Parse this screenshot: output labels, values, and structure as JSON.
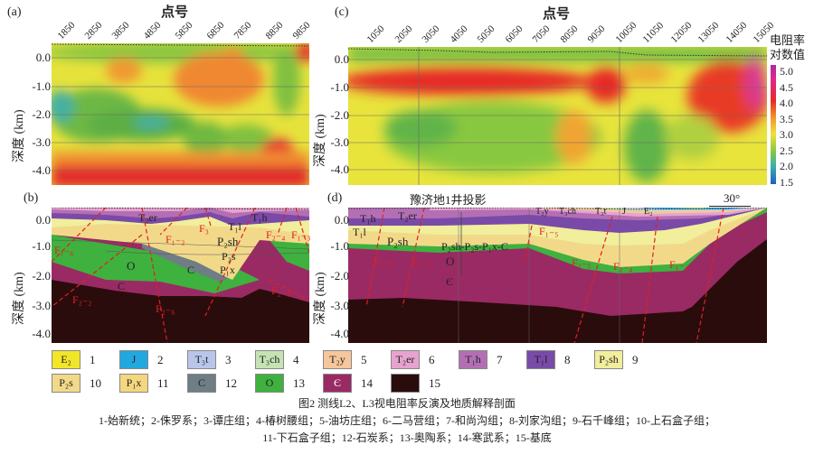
{
  "panel_a": {
    "label": "(a)",
    "x_title": "点号",
    "y_title": "深度 (km)",
    "x_ticks": [
      "1850",
      "2850",
      "3850",
      "4850",
      "5850",
      "6850",
      "7850",
      "8850",
      "9850"
    ],
    "y_ticks": [
      "0.0",
      "-1.0",
      "-2.0",
      "-3.0",
      "-4.0"
    ]
  },
  "panel_c": {
    "label": "(c)",
    "x_title": "点号",
    "y_title": "深度 (km)",
    "x_ticks": [
      "1050",
      "2050",
      "3050",
      "4050",
      "5050",
      "6050",
      "7050",
      "8050",
      "9050",
      "10050",
      "11050",
      "12050",
      "13050",
      "14050",
      "15050"
    ],
    "y_ticks": [
      "0.0",
      "-1.0",
      "-2.0",
      "-3.0",
      "-4.0"
    ]
  },
  "colorbar": {
    "title_1": "电阻率",
    "title_2": "对数值",
    "values": [
      "5.0",
      "4.5",
      "4.0",
      "3.5",
      "3.0",
      "2.5",
      "2.0",
      "1.5"
    ]
  },
  "panel_b": {
    "label": "(b)",
    "y_title": "深度 (km)",
    "y_ticks": [
      "0.0",
      "-1.0",
      "-2.0",
      "-3.0",
      "-4.0"
    ],
    "units": [
      "T₂er",
      "T₁h",
      "T₁l",
      "P₂sh",
      "P₂s",
      "P₁x",
      "C",
      "O",
      "C"
    ],
    "faults": [
      "F₁₋₂",
      "F₃",
      "F₂₋₄",
      "F₁₋₃",
      "F₁₋₆",
      "F₂₋₂",
      "F₂₋₆",
      "F₂₋₅"
    ]
  },
  "panel_d": {
    "label": "(d)",
    "well_label": "豫济地1井投影",
    "dip_label": "30°",
    "y_title": "深度 (km)",
    "y_ticks": [
      "0.0",
      "-1.0",
      "-2.0",
      "-3.0",
      "-4.0"
    ],
    "units": [
      "T₁h",
      "T₁l",
      "T₂er",
      "P₂sh",
      "P₂sh-P₂s-P₁x-C",
      "O",
      "Є",
      "T₂y",
      "T₃ch",
      "T₃t",
      "J",
      "E₂"
    ],
    "faults": [
      "F₁₋₅",
      "F₂₋₆",
      "F₁₋₆",
      "F₂₋₅",
      "F₂₋₄",
      "F₁₋₄"
    ]
  },
  "legend": [
    {
      "symbol": "E₂",
      "num": "1",
      "color": "#f2e629"
    },
    {
      "symbol": "J",
      "num": "2",
      "color": "#22a8e0"
    },
    {
      "symbol": "T₃t",
      "num": "3",
      "color": "#b9c6ea"
    },
    {
      "symbol": "T₃ch",
      "num": "4",
      "color": "#c5e3b4"
    },
    {
      "symbol": "T₂y",
      "num": "5",
      "color": "#f6c69c"
    },
    {
      "symbol": "T₂er",
      "num": "6",
      "color": "#e6a3cf"
    },
    {
      "symbol": "T₁h",
      "num": "7",
      "color": "#b46fb4"
    },
    {
      "symbol": "T₁l",
      "num": "8",
      "color": "#7a4aa8"
    },
    {
      "symbol": "P₂sh",
      "num": "9",
      "color": "#f1ee9c"
    },
    {
      "symbol": "P₂s",
      "num": "10",
      "color": "#f2d98a"
    },
    {
      "symbol": "P₁x",
      "num": "11",
      "color": "#f4d77e"
    },
    {
      "symbol": "C",
      "num": "12",
      "color": "#6f7e84"
    },
    {
      "symbol": "O",
      "num": "13",
      "color": "#3eb13e"
    },
    {
      "symbol": "Є",
      "num": "14",
      "color": "#9a2a63"
    },
    {
      "symbol": "",
      "num": "15",
      "color": "#2a0c0c"
    }
  ],
  "caption": {
    "title": "图2 测线L2、L3视电阻率反演及地质解释剖面",
    "line1": "1-始新统；2-侏罗系；3-谭庄组；4-椿树腰组；5-油坊庄组；6-二马营组；7-和尚沟组；8-刘家沟组；9-石千峰组；10-上石盒子组；",
    "line2": "11-下石盒子组；12-石炭系；13-奥陶系；14-寒武系；15-基底"
  }
}
